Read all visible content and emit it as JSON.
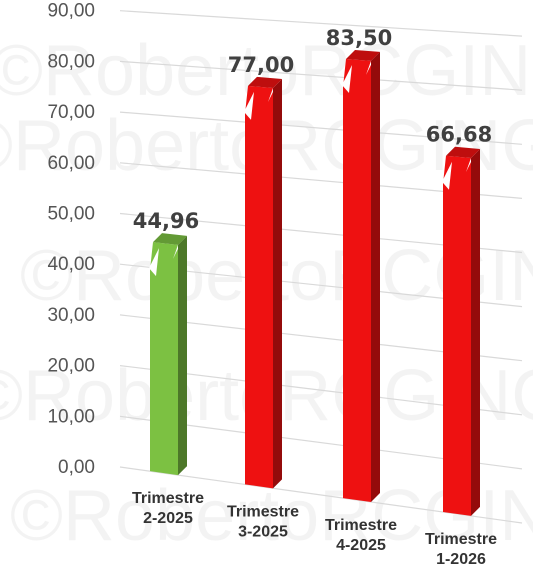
{
  "chart_data": {
    "type": "bar",
    "title": "",
    "xlabel": "",
    "ylabel": "",
    "ylim": [
      0,
      90
    ],
    "y_ticks": [
      "0,00",
      "10,00",
      "20,00",
      "30,00",
      "40,00",
      "50,00",
      "60,00",
      "70,00",
      "80,00",
      "90,00"
    ],
    "categories": [
      [
        "Trimestre",
        "2-2025"
      ],
      [
        "Trimestre",
        "3-2025"
      ],
      [
        "Trimestre",
        "4-2025"
      ],
      [
        "Trimestre",
        "1-2026"
      ]
    ],
    "values": [
      44.96,
      77.0,
      83.5,
      66.68
    ],
    "data_labels": [
      "44,96",
      "77,00",
      "83,50",
      "66,68"
    ],
    "colors": [
      "#7cc142",
      "#ee1111",
      "#ee1111",
      "#ee1111"
    ],
    "grid": true,
    "legend": "none",
    "style": "3d-perspective-columns",
    "watermark": "©RobertoRCGING"
  }
}
